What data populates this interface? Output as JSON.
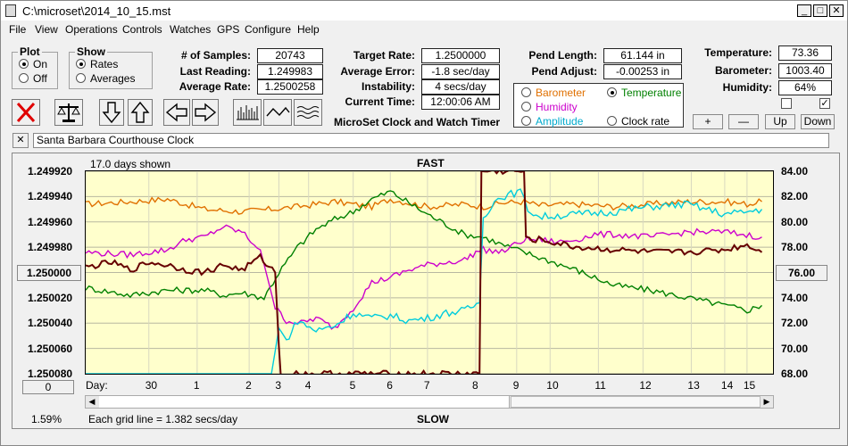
{
  "window": {
    "title": "C:\\microset\\2014_10_15.mst"
  },
  "menu": [
    "File",
    "View",
    "Operations",
    "Controls",
    "Watches",
    "GPS",
    "Configure",
    "Help"
  ],
  "plot_group": {
    "title": "Plot",
    "on": "On",
    "off": "Off",
    "selected": "On"
  },
  "show_group": {
    "title": "Show",
    "rates": "Rates",
    "averages": "Averages",
    "selected": "Rates"
  },
  "stats": {
    "samples_label": "# of Samples:",
    "samples": "20743",
    "last_label": "Last Reading:",
    "last": "1.249983",
    "avg_rate_label": "Average Rate:",
    "avg_rate": "1.2500258",
    "target_label": "Target Rate:",
    "target": "1.2500000",
    "avg_err_label": "Average Error:",
    "avg_err": "-1.8 sec/day",
    "instab_label": "Instability:",
    "instab": "4 secs/day",
    "time_label": "Current Time:",
    "time": "12:00:06 AM",
    "pend_len_label": "Pend Length:",
    "pend_len": "61.144 in",
    "pend_adj_label": "Pend Adjust:",
    "pend_adj": "-0.00253 in",
    "temp_label": "Temperature:",
    "temp": "73.36",
    "baro_label": "Barometer:",
    "baro": "1003.40",
    "humid_label": "Humidity:",
    "humid": "64%"
  },
  "legend": {
    "barometer": "Barometer",
    "temperature": "Temperature",
    "humidity": "Humidity",
    "amplitude": "Amplitude",
    "clock_rate": "Clock rate",
    "selected": "Temperature",
    "colors": {
      "barometer": "#e07000",
      "temperature": "#008000",
      "humidity": "#cc00cc",
      "amplitude": "#00aacc",
      "clock_rate": "#000000"
    }
  },
  "app_title": "MicroSet Clock and Watch Timer",
  "buttons": {
    "plus": "+",
    "minus": "—",
    "up": "Up",
    "down": "Down",
    "close_x": "✕"
  },
  "checkboxes": {
    "left_checked": false,
    "right_checked": true
  },
  "clock_name": "Santa Barbara Courthouse Clock",
  "chart": {
    "days_shown": "17.0 days shown",
    "top_label": "FAST",
    "bottom_label": "SLOW",
    "grid_note": "Each grid line = 1.382 secs/day",
    "percent": "1.59%",
    "left_cursor": "1.250000",
    "right_cursor": "76.00",
    "offset_button": "0",
    "day_label": "Day:"
  },
  "chart_data": {
    "type": "line",
    "left_axis_ticks": [
      "1.249920",
      "1.249940",
      "1.249960",
      "1.249980",
      "1.250000",
      "1.250020",
      "1.250040",
      "1.250060",
      "1.250080"
    ],
    "right_axis_ticks": [
      "84.00",
      "82.00",
      "80.00",
      "78.00",
      "76.00",
      "74.00",
      "72.00",
      "70.00",
      "68.00"
    ],
    "x_ticks": [
      "30",
      "1",
      "2",
      "3",
      "4",
      "5",
      "6",
      "7",
      "8",
      "9",
      "10",
      "11",
      "12",
      "13",
      "14",
      "15"
    ],
    "x_tick_days": [
      -0.5,
      0.8,
      2.2,
      3.0,
      3.8,
      5.0,
      6.0,
      7.0,
      8.3,
      9.4,
      10.3,
      11.6,
      12.8,
      14.1,
      15.0,
      15.6
    ],
    "x_range_days": [
      -2.2,
      16.3
    ],
    "grid": true,
    "series": [
      {
        "name": "Barometer",
        "color": "#e07000",
        "x": [
          -2.2,
          -1,
          0,
          1,
          2,
          2.8,
          3.5,
          4.5,
          5.5,
          6,
          7,
          8,
          8.5,
          9,
          9.6,
          10,
          11,
          12,
          13,
          14,
          15,
          15.6,
          16
        ],
        "y": [
          81.4,
          81.6,
          81.8,
          81.0,
          80.8,
          81.0,
          81.2,
          81.6,
          81.2,
          81.8,
          81.2,
          81.4,
          81.2,
          81.5,
          81.6,
          81.3,
          81.4,
          81.2,
          81.4,
          81.6,
          81.6,
          81.4,
          81.6
        ]
      },
      {
        "name": "Temperature",
        "color": "#008000",
        "x": [
          -2.2,
          -1,
          0,
          1,
          1.5,
          2,
          2.6,
          3.0,
          3.5,
          4.0,
          4.5,
          5.0,
          5.5,
          6.0,
          7.0,
          8.0,
          8.5,
          9.0,
          10.0,
          11.0,
          12.0,
          13.0,
          14.0,
          15.0,
          15.6,
          16.0
        ],
        "y": [
          74.8,
          74.2,
          74.6,
          74.6,
          74.2,
          74.4,
          74.0,
          76.0,
          78.0,
          79.4,
          80.2,
          80.8,
          81.8,
          82.4,
          80.6,
          79.0,
          78.8,
          78.2,
          77.2,
          76.2,
          75.0,
          74.6,
          74.0,
          73.4,
          73.0,
          73.4
        ]
      },
      {
        "name": "Humidity",
        "color": "#cc00cc",
        "x": [
          -2.2,
          -1,
          0,
          0.5,
          1,
          1.5,
          2,
          2.5,
          2.9,
          3.2,
          3.6,
          4.0,
          4.5,
          5,
          5.5,
          6,
          6.5,
          7,
          8,
          8.3,
          8.5,
          9,
          9.6,
          10,
          10.5,
          11,
          11.5,
          12,
          13,
          14,
          15,
          16
        ],
        "y": [
          77.6,
          77.4,
          77.8,
          78.6,
          78.8,
          79.6,
          79.2,
          77.8,
          73.2,
          72.2,
          72.0,
          72.4,
          71.6,
          73.2,
          75.2,
          75.6,
          76.2,
          76.6,
          77.0,
          77.6,
          77.8,
          77.6,
          78.6,
          78.6,
          78.4,
          78.6,
          79.0,
          79.0,
          78.8,
          79.2,
          79.2,
          78.8
        ]
      },
      {
        "name": "Amplitude",
        "color": "#00ccdd",
        "x": [
          -2.2,
          2.8,
          3.0,
          3.2,
          3.5,
          4.0,
          4.5,
          5.0,
          5.5,
          6.0,
          6.5,
          7.0,
          7.5,
          8.0,
          8.4,
          8.5,
          8.8,
          9.0,
          9.5,
          9.7,
          10.0,
          11.0,
          12.0,
          13.0,
          14.0,
          15.0,
          15.6,
          16.0
        ],
        "y": [
          68.0,
          68.0,
          71.6,
          70.6,
          72.2,
          71.4,
          71.8,
          72.8,
          72.4,
          72.6,
          72.2,
          72.4,
          72.8,
          73.0,
          73.6,
          80.4,
          81.6,
          82.0,
          82.4,
          81.0,
          80.4,
          80.6,
          80.8,
          81.2,
          81.4,
          80.6,
          80.8,
          81.0
        ]
      },
      {
        "name": "Clock rate",
        "color": "#660000",
        "x": [
          -2.2,
          -1.5,
          -1,
          -0.5,
          0,
          0.5,
          1,
          1.5,
          2,
          2.5,
          2.9,
          3.0,
          3.05,
          8.4,
          8.45,
          9.6,
          9.65,
          10.0,
          11.0,
          12.0,
          13.0,
          14.0,
          15.0,
          15.6,
          16.0
        ],
        "y": [
          76.4,
          76.8,
          76.2,
          76.8,
          76.6,
          76.2,
          76.0,
          76.6,
          76.2,
          77.2,
          76.0,
          70.2,
          68.0,
          68.0,
          84.0,
          84.0,
          78.6,
          78.6,
          78.0,
          77.8,
          77.6,
          77.6,
          77.8,
          78.2,
          77.6
        ]
      }
    ]
  }
}
